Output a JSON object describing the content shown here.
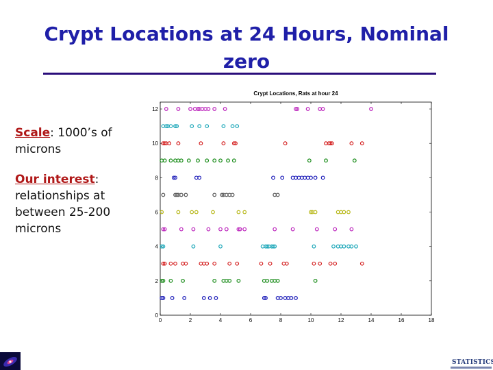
{
  "slide": {
    "title": "Crypt Locations at 24 Hours, Nominal zero",
    "bullets": [
      {
        "key": "Scale",
        "rest": ": 1000’s of microns"
      },
      {
        "key": "Our interest",
        "rest": ": relationships at between 25-200 microns"
      }
    ],
    "logo_text": "STATISTICS"
  },
  "chart_data": {
    "type": "scatter",
    "title": "Crypt Locations, Rats at hour 24",
    "xlabel": "",
    "ylabel": "",
    "xlim": [
      0,
      18
    ],
    "ylim": [
      0,
      12.4
    ],
    "xticks": [
      0,
      2,
      4,
      6,
      8,
      10,
      12,
      14,
      16,
      18
    ],
    "yticks": [
      0,
      2,
      4,
      6,
      8,
      10,
      12
    ],
    "grid": false,
    "legend": "none",
    "rows": [
      {
        "y": 12,
        "color": "#bb22bb",
        "x": [
          0.4,
          1.2,
          2.0,
          2.3,
          2.5,
          2.6,
          2.8,
          3.0,
          3.2,
          3.6,
          4.3,
          9.0,
          9.1,
          9.8,
          10.6,
          10.8,
          14.0
        ]
      },
      {
        "y": 11,
        "color": "#1aa6b8",
        "x": [
          0.2,
          0.4,
          0.5,
          0.7,
          1.0,
          1.1,
          2.1,
          2.6,
          3.1,
          4.2,
          4.8,
          5.1
        ]
      },
      {
        "y": 10,
        "color": "#d42020",
        "x": [
          0.2,
          0.3,
          0.4,
          0.6,
          1.2,
          2.7,
          4.2,
          4.9,
          5.0,
          8.3,
          11.0,
          11.2,
          11.3,
          11.4,
          12.7,
          13.4
        ]
      },
      {
        "y": 9,
        "color": "#168a16",
        "x": [
          0.1,
          0.3,
          0.7,
          1.0,
          1.2,
          1.4,
          1.9,
          2.5,
          3.1,
          3.6,
          4.0,
          4.5,
          4.9,
          9.9,
          11.0,
          12.9
        ]
      },
      {
        "y": 8,
        "color": "#1a1ab8",
        "x": [
          0.9,
          1.0,
          2.4,
          2.6,
          7.5,
          8.1,
          8.8,
          9.0,
          9.2,
          9.4,
          9.6,
          9.8,
          10.0,
          10.3,
          10.8
        ]
      },
      {
        "y": 7,
        "color": "#555555",
        "x": [
          0.2,
          1.0,
          1.1,
          1.2,
          1.4,
          1.7,
          3.6,
          4.1,
          4.2,
          4.4,
          4.6,
          4.8,
          7.6,
          7.8
        ]
      },
      {
        "y": 6,
        "color": "#b8b81a",
        "x": [
          0.1,
          1.2,
          2.1,
          2.4,
          3.5,
          5.2,
          5.6,
          10.0,
          10.1,
          10.3,
          11.8,
          12.0,
          12.2,
          12.5
        ]
      },
      {
        "y": 5,
        "color": "#bb22bb",
        "x": [
          0.2,
          0.3,
          1.4,
          2.2,
          3.2,
          4.0,
          4.4,
          5.2,
          5.3,
          5.6,
          7.6,
          8.8,
          10.4,
          11.6,
          12.7
        ]
      },
      {
        "y": 4,
        "color": "#1aa6b8",
        "x": [
          0.1,
          0.2,
          2.2,
          4.0,
          6.8,
          7.0,
          7.1,
          7.2,
          7.4,
          7.5,
          7.6,
          10.2,
          11.5,
          11.8,
          12.0,
          12.2,
          12.5,
          12.7,
          13.0
        ]
      },
      {
        "y": 3,
        "color": "#d42020",
        "x": [
          0.2,
          0.3,
          0.7,
          1.0,
          1.5,
          1.7,
          2.7,
          2.9,
          3.1,
          3.6,
          4.6,
          5.1,
          6.7,
          7.3,
          8.2,
          8.4,
          10.2,
          10.6,
          11.3,
          11.6,
          13.4
        ]
      },
      {
        "y": 2,
        "color": "#168a16",
        "x": [
          0.1,
          0.2,
          0.7,
          1.5,
          3.6,
          4.2,
          4.4,
          4.6,
          5.2,
          6.9,
          7.1,
          7.4,
          7.6,
          7.8,
          10.3
        ]
      },
      {
        "y": 1,
        "color": "#1a1ab8",
        "x": [
          0.1,
          0.2,
          0.8,
          1.6,
          2.9,
          3.3,
          3.7,
          6.9,
          7.0,
          7.8,
          8.0,
          8.3,
          8.5,
          8.7,
          9.0
        ]
      }
    ]
  }
}
